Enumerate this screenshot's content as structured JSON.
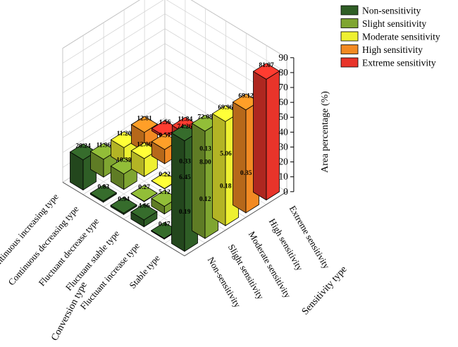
{
  "chart_data": {
    "type": "bar3d",
    "x_axis_label": "Conversion type",
    "y_axis_label": "Sensitivity type",
    "z_axis_label": "Area percentage (%)",
    "z_ticks": [
      0,
      10,
      20,
      30,
      40,
      50,
      60,
      70,
      80,
      90
    ],
    "zlim": [
      0,
      90
    ],
    "conversion_types": [
      "Stable type",
      "Fluctuant increase type",
      "Fluctuant stable type",
      "Fluctuant decrease type",
      "Continuous decreasing type",
      "Continuous increasing type"
    ],
    "sensitivity_types": [
      "Non-sensitivity",
      "Slight sensitivity",
      "Moderate sensitivity",
      "High sensitivity",
      "Extreme sensitivity"
    ],
    "series": [
      {
        "name": "Non-sensitivity",
        "color": "#2f5e26",
        "values": [
          74.26,
          0.47,
          4.66,
          0.94,
          0.83,
          20.24
        ]
      },
      {
        "name": "Slight sensitivity",
        "color": "#7fa531",
        "values": [
          72.08,
          0.19,
          5.12,
          0.27,
          10.39,
          11.96
        ]
      },
      {
        "name": "Moderate sensitivity",
        "color": "#eef031",
        "values": [
          69.96,
          0.12,
          6.45,
          0.22,
          12.06,
          11.2
        ]
      },
      {
        "name": "High sensitivity",
        "color": "#f28a23",
        "values": [
          69.12,
          0.18,
          8.0,
          0.33,
          9.57,
          12.81
        ]
      },
      {
        "name": "Extreme sensitivity",
        "color": "#e8342a",
        "values": [
          81.07,
          0.35,
          5.06,
          0.13,
          11.84,
          1.56
        ]
      }
    ],
    "value_labels": [
      [
        "74.26",
        "0.47",
        "4.66",
        "0.94",
        "0.83",
        "20.24"
      ],
      [
        "72.08",
        "0.19",
        "5.12",
        "0.27",
        "10.39",
        "11.96"
      ],
      [
        "69.96",
        "0.12",
        "6.45",
        "0.22",
        "12.06",
        "11.20"
      ],
      [
        "69.12",
        "0.18",
        "8.00",
        "0.33",
        "9.57",
        "12.81"
      ],
      [
        "81.07",
        "0.35",
        "5.06",
        "0.13",
        "11.84",
        "1.56"
      ]
    ],
    "legend_position": "top-right"
  }
}
